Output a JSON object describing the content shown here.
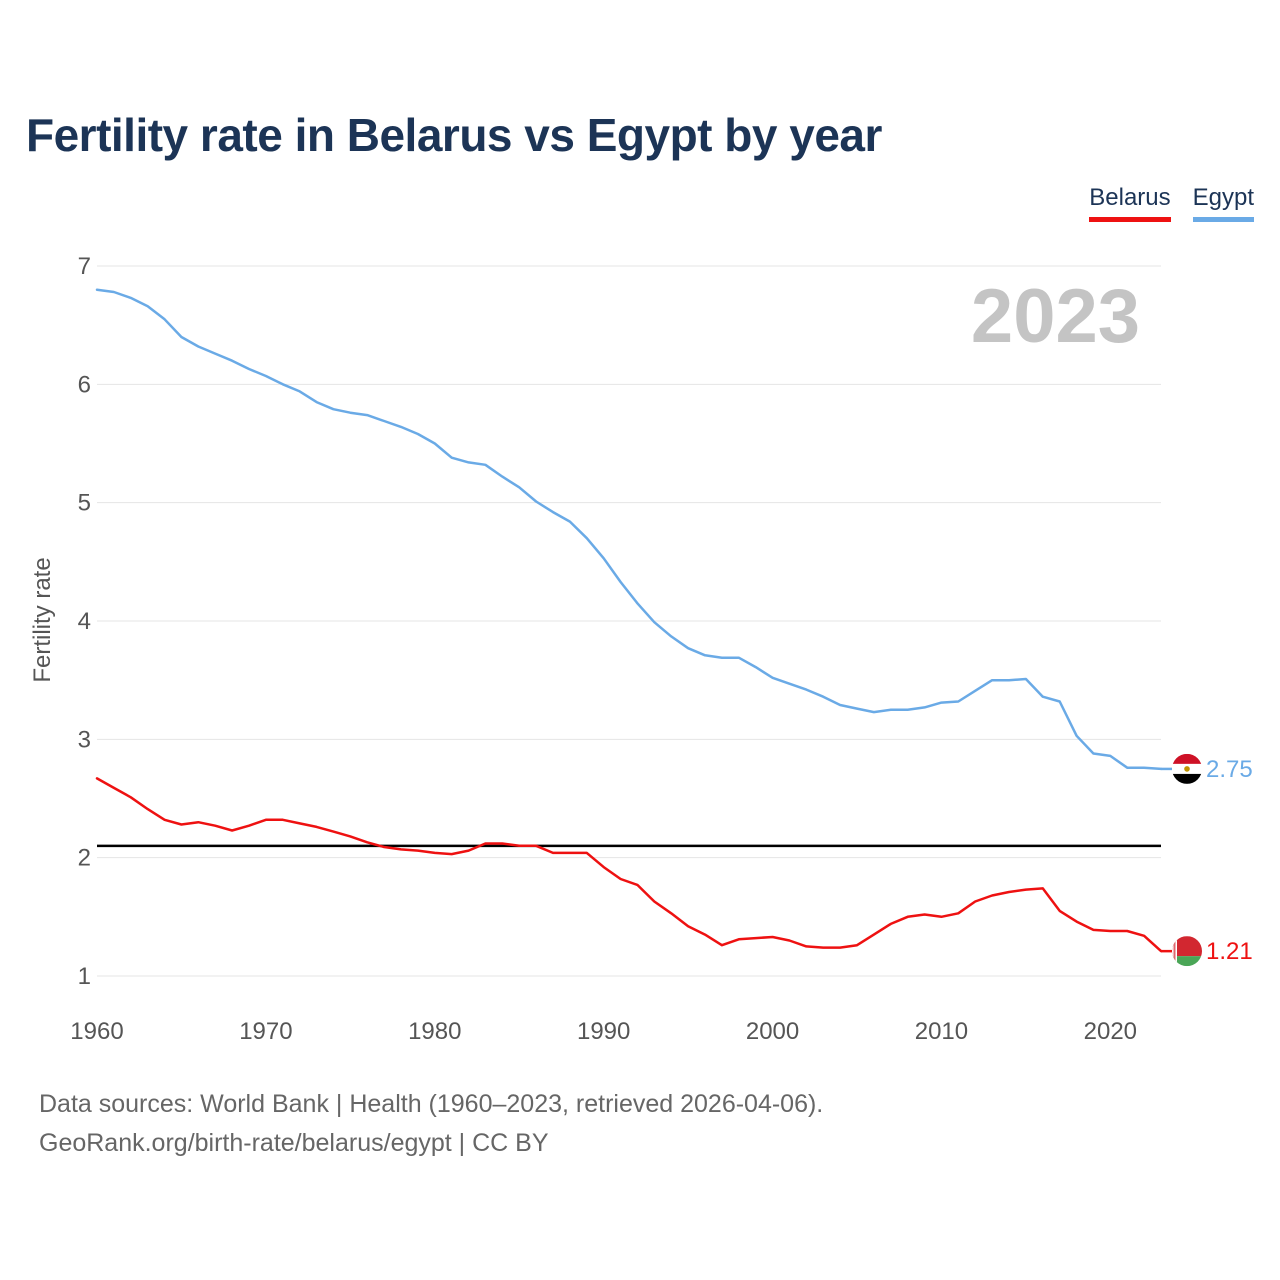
{
  "title": "Fertility rate in Belarus vs Egypt by year",
  "legend": [
    {
      "name": "Belarus",
      "color": "#ee1111"
    },
    {
      "name": "Egypt",
      "color": "#6aaae6"
    }
  ],
  "footer": {
    "line1": "Data sources: World Bank | Health (1960–2023, retrieved 2026-04-06).",
    "line2": "GeoRank.org/birth-rate/belarus/egypt | CC BY"
  },
  "chart_data": {
    "type": "line",
    "title": "Fertility rate in Belarus vs Egypt by year",
    "xlabel": "",
    "ylabel": "Fertility rate",
    "xlim": [
      1960,
      2023
    ],
    "ylim": [
      1,
      7
    ],
    "xticks": [
      1960,
      1970,
      1980,
      1990,
      2000,
      2010,
      2020
    ],
    "yticks": [
      1,
      2,
      3,
      4,
      5,
      6,
      7
    ],
    "grid": true,
    "year_label": "2023",
    "reference_line": {
      "value": 2.1,
      "color": "#000000"
    },
    "x": [
      1960,
      1961,
      1962,
      1963,
      1964,
      1965,
      1966,
      1967,
      1968,
      1969,
      1970,
      1971,
      1972,
      1973,
      1974,
      1975,
      1976,
      1977,
      1978,
      1979,
      1980,
      1981,
      1982,
      1983,
      1984,
      1985,
      1986,
      1987,
      1988,
      1989,
      1990,
      1991,
      1992,
      1993,
      1994,
      1995,
      1996,
      1997,
      1998,
      1999,
      2000,
      2001,
      2002,
      2003,
      2004,
      2005,
      2006,
      2007,
      2008,
      2009,
      2010,
      2011,
      2012,
      2013,
      2014,
      2015,
      2016,
      2017,
      2018,
      2019,
      2020,
      2021,
      2022,
      2023
    ],
    "series": [
      {
        "name": "Egypt",
        "color": "#6aaae6",
        "end_label": "2.75",
        "values": [
          6.8,
          6.78,
          6.73,
          6.66,
          6.55,
          6.4,
          6.32,
          6.26,
          6.2,
          6.13,
          6.07,
          6.0,
          5.94,
          5.85,
          5.79,
          5.76,
          5.74,
          5.69,
          5.64,
          5.58,
          5.5,
          5.38,
          5.34,
          5.32,
          5.22,
          5.13,
          5.01,
          4.92,
          4.84,
          4.7,
          4.53,
          4.33,
          4.15,
          3.99,
          3.87,
          3.77,
          3.71,
          3.69,
          3.69,
          3.61,
          3.52,
          3.47,
          3.42,
          3.36,
          3.29,
          3.26,
          3.23,
          3.25,
          3.25,
          3.27,
          3.31,
          3.32,
          3.41,
          3.5,
          3.5,
          3.51,
          3.36,
          3.32,
          3.03,
          2.88,
          2.86,
          2.76,
          2.76,
          2.75
        ]
      },
      {
        "name": "Belarus",
        "color": "#ee1111",
        "end_label": "1.21",
        "values": [
          2.67,
          2.59,
          2.51,
          2.41,
          2.32,
          2.28,
          2.3,
          2.27,
          2.23,
          2.27,
          2.32,
          2.32,
          2.29,
          2.26,
          2.22,
          2.18,
          2.13,
          2.09,
          2.07,
          2.06,
          2.04,
          2.03,
          2.06,
          2.12,
          2.12,
          2.1,
          2.1,
          2.04,
          2.04,
          2.04,
          1.92,
          1.82,
          1.77,
          1.63,
          1.53,
          1.42,
          1.35,
          1.26,
          1.31,
          1.32,
          1.33,
          1.3,
          1.25,
          1.24,
          1.24,
          1.26,
          1.35,
          1.44,
          1.5,
          1.52,
          1.5,
          1.53,
          1.63,
          1.68,
          1.71,
          1.73,
          1.74,
          1.55,
          1.46,
          1.39,
          1.38,
          1.38,
          1.34,
          1.21
        ]
      }
    ]
  }
}
